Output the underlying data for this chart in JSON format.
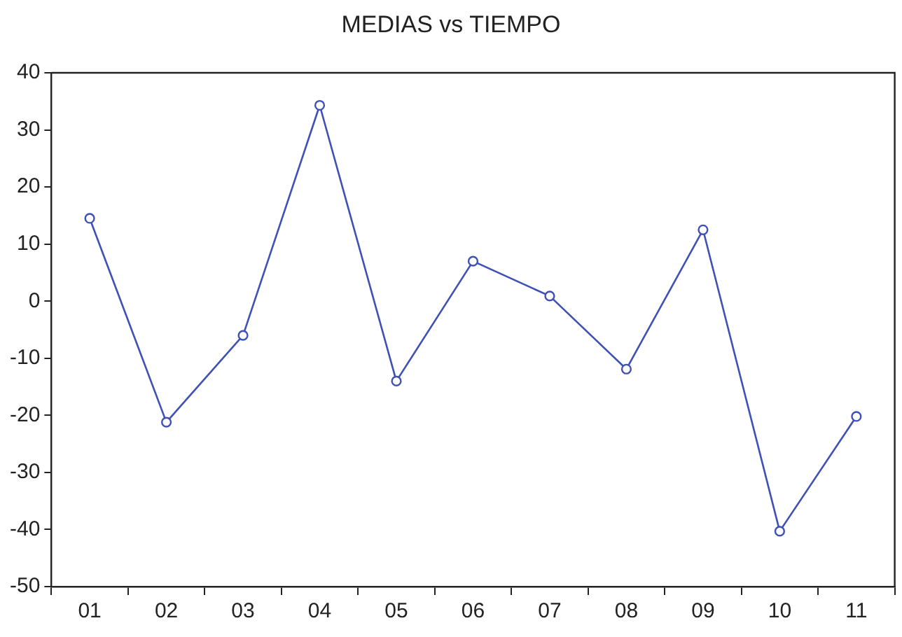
{
  "chart_data": {
    "type": "line",
    "title": "MEDIAS vs TIEMPO",
    "categories": [
      "01",
      "02",
      "03",
      "04",
      "05",
      "06",
      "07",
      "08",
      "09",
      "10",
      "11"
    ],
    "series": [
      {
        "color": "#3f51b5",
        "values": [
          14.5,
          -21.2,
          -6.0,
          34.3,
          -14.0,
          7.0,
          0.9,
          -11.9,
          12.5,
          -40.3,
          -20.2
        ]
      }
    ],
    "ylim": [
      -50,
      40
    ],
    "yticks": [
      -50,
      -40,
      -30,
      -20,
      -10,
      0,
      10,
      20,
      30,
      40
    ],
    "grid": false,
    "legend": false,
    "marker": "circle",
    "line_style": "solid"
  }
}
